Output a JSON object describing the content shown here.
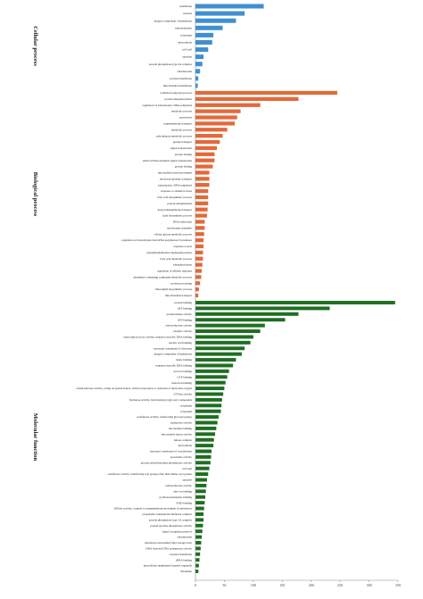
{
  "chart_data": {
    "type": "bar",
    "orientation": "horizontal",
    "xlim": [
      0,
      350
    ],
    "xticks": [
      "0",
      "50",
      "100",
      "150",
      "200",
      "250",
      "300",
      "350"
    ],
    "groups": [
      {
        "name": "Cellular process",
        "color": "#3f8fd2",
        "categories": [
          "membrane",
          "nucleus",
          "integral component of membrane",
          "mitochondrion",
          "cytoplasm",
          "microtubule",
          "cell wall",
          "apoplast",
          "protein phosphatase type 2A complex",
          "chromosome",
          "vacuolar membrane",
          "mitochondrial membrane"
        ],
        "values": [
          118,
          85,
          70,
          47,
          31,
          29,
          22,
          14,
          12,
          8,
          5,
          4
        ]
      },
      {
        "name": "Biological process",
        "color": "#e2693a",
        "categories": [
          "oxidation-reduction process",
          "protein phosphorylation",
          "regulation of transcription, DNA-templated",
          "metabolic process",
          "proteolysis",
          "transmembrane transport",
          "metabolic process",
          "carbohydrate metabolic process",
          "protein transport",
          "signal transduction",
          "protein folding",
          "small GTPase mediated signal transduction",
          "protein folding",
          "microtubule-based movement",
          "nucleocytoplasmic transport",
          "transcription, DNA-templated",
          "response to oxidative stress",
          "fatty acid biosynthetic process",
          "protein ubiquitination",
          "drug transmembrane transport",
          "lipid biosynthetic process",
          "DNA replication",
          "nucleosome assembly",
          "cellular glucan metabolic process",
          "regulation of transcription from RNA polymerase II promoter",
          "response to heat",
          "phosphatidylinositol dephosphorylation",
          "fatty acid metabolic process",
          "phosphorylation",
          "regulation of defense response",
          "phosphate-containing compound metabolic process",
          "protein processing",
          "chlorophyll biosynthetic process",
          "mitochondrial transport"
        ],
        "values": [
          245,
          178,
          112,
          78,
          72,
          68,
          55,
          47,
          42,
          37,
          33,
          33,
          30,
          24,
          24,
          24,
          22,
          22,
          22,
          21,
          20,
          16,
          16,
          15,
          14,
          14,
          13,
          13,
          12,
          11,
          10,
          8,
          6,
          5
        ]
      },
      {
        "name": "Molecular function",
        "color": "#1f6e22",
        "categories": [
          "protein binding",
          "ATP binding",
          "protein kinase activity",
          "ATP binding",
          "oxidoreductase activity",
          "catalytic activity",
          "transcription factor activity, sequence-specific DNA binding",
          "nucleic acid binding",
          "structural constituent of ribosome",
          "integral component of membrane",
          "heme binding",
          "sequence-specific DNA binding",
          "iron ion binding",
          "GTP binding",
          "metal ion binding",
          "oxidoreductase activity, acting on paired donors, with incorporation or reduction of molecular oxygen",
          "GTPase activity",
          "hydrolase activity, hydrolyzing O-glycosyl compounds",
          "cytoplasm",
          "cytoplasm",
          "transferase activity, transferring glycosyl groups",
          "transporter activity",
          "microtubule binding",
          "microtubule motor activity",
          "kinase complex",
          "microtubule",
          "structural constituent of cytoskeleton",
          "peroxidase activity",
          "protein serine/threonine phosphatase activity",
          "cell wall",
          "transferase activity, transferring acyl groups other than amino-acyl groups",
          "apoplast",
          "oxidoreductase activity",
          "zinc ion binding",
          "pyridoxal phosphate binding",
          "NAD binding",
          "ATPase activity, coupled to transmembrane movement of substances",
          "cytoplasmic translational initiation complex",
          "protein phosphatase type 2A complex",
          "protein tyrosine phosphatase activity",
          "signal recognition particle",
          "chromosome",
          "monolayer-surrounded lipid storage body",
          "DNA-directed DNA polymerase activity",
          "vacuolar membrane",
          "rRNA binding",
          "intracellular membrane-bounded organelle",
          "chromatin"
        ],
        "values": [
          345,
          232,
          178,
          155,
          120,
          112,
          100,
          95,
          85,
          80,
          70,
          65,
          58,
          55,
          52,
          50,
          48,
          46,
          45,
          44,
          40,
          38,
          36,
          34,
          32,
          31,
          28,
          27,
          26,
          24,
          22,
          20,
          19,
          18,
          17,
          16,
          15,
          14,
          14,
          13,
          12,
          11,
          10,
          9,
          8,
          7,
          6,
          5
        ]
      }
    ]
  }
}
